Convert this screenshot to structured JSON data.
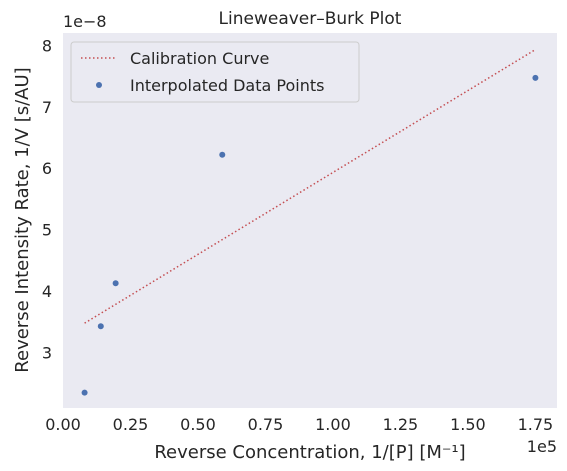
{
  "chart_data": {
    "type": "scatter",
    "title": "Lineweaver–Burk Plot",
    "xlabel": "Reverse Concentration, 1/[P] [M⁻¹]",
    "ylabel": "Reverse Intensity Rate, 1/V [s/AU]",
    "x_offset_label": "1e5",
    "y_offset_label": "1e−8",
    "xlim": [
      0.0,
      1.83
    ],
    "ylim": [
      2.1,
      8.2
    ],
    "x_ticks": [
      "0.00",
      "0.25",
      "0.50",
      "0.75",
      "1.00",
      "1.25",
      "1.50",
      "1.75"
    ],
    "y_ticks": [
      "3",
      "4",
      "5",
      "6",
      "7",
      "8"
    ],
    "grid": false,
    "legend_position": "top-left",
    "series": [
      {
        "name": "Calibration Curve",
        "kind": "line",
        "style": "dotted",
        "color": "#c44e52",
        "x": [
          0.08,
          1.75
        ],
        "y": [
          3.48,
          7.93
        ]
      },
      {
        "name": "Interpolated Data Points",
        "kind": "scatter",
        "color": "#4c72b0",
        "x": [
          0.08,
          0.14,
          0.195,
          0.59,
          1.75
        ],
        "y": [
          2.35,
          3.43,
          4.13,
          6.22,
          7.47
        ]
      }
    ]
  }
}
